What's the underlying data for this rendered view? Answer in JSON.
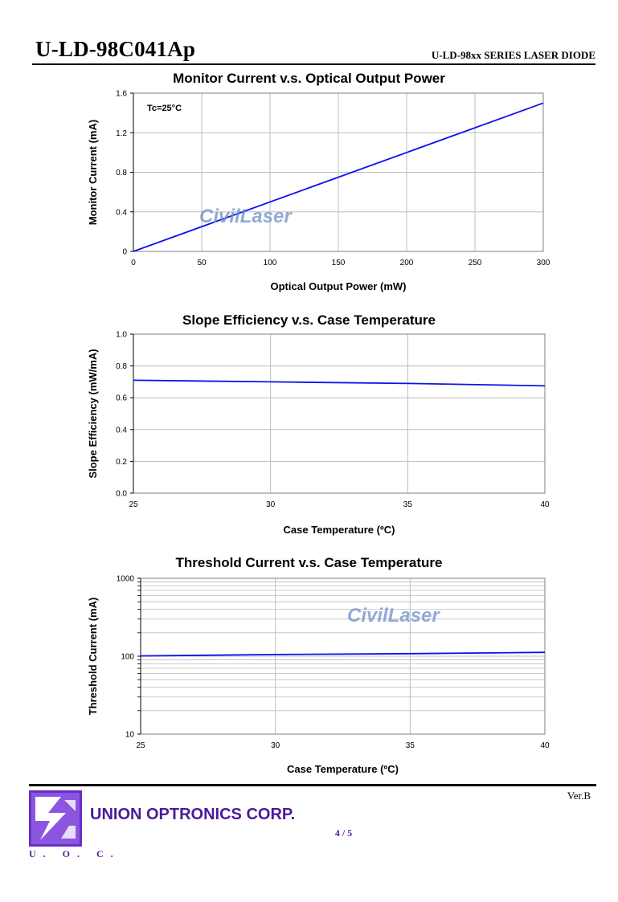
{
  "header": {
    "title": "U-LD-98C041Ap",
    "series": "U-LD-98xx SERIES LASER DIODE"
  },
  "watermark": "CivilLaser",
  "chart_data": [
    {
      "type": "line",
      "title": "Monitor Current v.s. Optical Output Power",
      "xlabel": "Optical Output Power (mW)",
      "ylabel": "Monitor Current (mA)",
      "xlim": [
        0,
        300
      ],
      "ylim": [
        0,
        1.6
      ],
      "x_ticks": [
        "0",
        "50",
        "100",
        "150",
        "200",
        "250",
        "300"
      ],
      "y_ticks": [
        "0",
        "0.4",
        "0.8",
        "1.2",
        "1.6"
      ],
      "annotation": "Tc=25°C",
      "grid": true,
      "line_color": "#1010ee",
      "series": [
        {
          "x": [
            0,
            300
          ],
          "y": [
            0,
            1.5
          ]
        }
      ]
    },
    {
      "type": "line",
      "title": "Slope Efficiency v.s. Case Temperature",
      "xlabel": "Case Temperature (ºC)",
      "ylabel": "Slope Efficiency (mW/mA)",
      "xlim": [
        25,
        40
      ],
      "ylim": [
        0,
        1.0
      ],
      "x_ticks": [
        "25",
        "30",
        "35",
        "40"
      ],
      "y_ticks": [
        "0.0",
        "0.2",
        "0.4",
        "0.6",
        "0.8",
        "1.0"
      ],
      "grid": true,
      "line_color": "#1010ee",
      "series": [
        {
          "x": [
            25,
            30,
            35,
            40
          ],
          "y": [
            0.71,
            0.7,
            0.69,
            0.675
          ]
        }
      ]
    },
    {
      "type": "line",
      "title": "Threshold Current v.s. Case Temperature",
      "xlabel": "Case Temperature (ºC)",
      "ylabel": "Threshold Current (mA)",
      "xlim": [
        25,
        40
      ],
      "ylim": [
        10,
        1000
      ],
      "yscale": "log",
      "x_ticks": [
        "25",
        "30",
        "35",
        "40"
      ],
      "y_ticks": [
        "10",
        "100",
        "1000"
      ],
      "grid": true,
      "line_color": "#1010ee",
      "series": [
        {
          "x": [
            25,
            30,
            35,
            40
          ],
          "y": [
            101,
            105,
            108,
            112
          ]
        }
      ]
    }
  ],
  "footer": {
    "company": "UNION OPTRONICS CORP.",
    "logo_letters": "U. O. C.",
    "version": "Ver.B",
    "page": "4 / 5"
  },
  "colors": {
    "line": "#1010ee",
    "brand": "#4b1a99",
    "watermark": "#6e8fc4"
  }
}
